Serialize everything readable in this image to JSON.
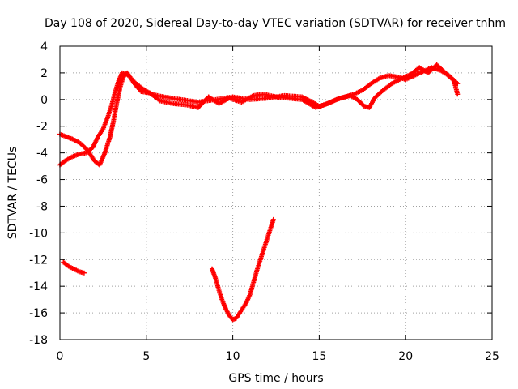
{
  "chart_data": {
    "type": "scatter",
    "title": "Day 108 of 2020, Sidereal Day-to-day VTEC variation (SDTVAR) for receiver tnhm",
    "xlabel": "GPS time / hours",
    "ylabel": "SDTVAR / TECUs",
    "xlim": [
      0,
      25
    ],
    "ylim": [
      -18,
      4
    ],
    "x_ticks": [
      0,
      5,
      10,
      15,
      20,
      25
    ],
    "y_ticks": [
      -18,
      -16,
      -14,
      -12,
      -10,
      -8,
      -6,
      -4,
      -2,
      0,
      2,
      4
    ],
    "grid": true,
    "marker": "plus",
    "series_color": "#ff0000",
    "series": [
      {
        "name": "upper-trace-a",
        "points": [
          [
            0,
            -2.6
          ],
          [
            0.4,
            -2.8
          ],
          [
            0.8,
            -3.0
          ],
          [
            1.2,
            -3.3
          ],
          [
            1.6,
            -3.8
          ],
          [
            2.0,
            -4.6
          ],
          [
            2.3,
            -4.9
          ],
          [
            2.6,
            -4.0
          ],
          [
            2.9,
            -2.8
          ],
          [
            3.1,
            -1.6
          ],
          [
            3.3,
            -0.2
          ],
          [
            3.5,
            1.0
          ],
          [
            3.7,
            1.8
          ],
          [
            3.9,
            2.0
          ],
          [
            4.1,
            1.6
          ],
          [
            4.4,
            1.2
          ],
          [
            4.8,
            0.8
          ],
          [
            5.3,
            0.4
          ],
          [
            6.0,
            0.2
          ],
          [
            7.0,
            0.0
          ],
          [
            8.0,
            -0.2
          ],
          [
            9.0,
            0.0
          ],
          [
            10.0,
            0.2
          ],
          [
            11.0,
            0.0
          ],
          [
            12.0,
            0.1
          ],
          [
            13.0,
            0.3
          ],
          [
            14.0,
            0.2
          ],
          [
            14.6,
            -0.2
          ],
          [
            15.0,
            -0.5
          ],
          [
            15.5,
            -0.3
          ],
          [
            16.0,
            0.0
          ],
          [
            16.5,
            0.2
          ],
          [
            17.0,
            0.4
          ],
          [
            17.5,
            0.7
          ],
          [
            18.0,
            1.2
          ],
          [
            18.5,
            1.6
          ],
          [
            19.0,
            1.8
          ],
          [
            19.5,
            1.7
          ],
          [
            20.0,
            1.5
          ],
          [
            20.5,
            1.8
          ],
          [
            21.0,
            2.1
          ],
          [
            21.5,
            2.4
          ],
          [
            22.0,
            2.2
          ],
          [
            22.5,
            1.8
          ],
          [
            23.0,
            1.2
          ]
        ]
      },
      {
        "name": "upper-trace-b",
        "points": [
          [
            0,
            -4.9
          ],
          [
            0.3,
            -4.6
          ],
          [
            0.7,
            -4.3
          ],
          [
            1.1,
            -4.1
          ],
          [
            1.5,
            -4.0
          ],
          [
            1.9,
            -3.6
          ],
          [
            2.2,
            -2.8
          ],
          [
            2.5,
            -2.2
          ],
          [
            2.8,
            -1.2
          ],
          [
            3.0,
            -0.4
          ],
          [
            3.2,
            0.6
          ],
          [
            3.4,
            1.4
          ],
          [
            3.6,
            2.0
          ],
          [
            4.0,
            1.8
          ],
          [
            4.3,
            1.2
          ],
          [
            4.7,
            0.6
          ],
          [
            5.2,
            0.5
          ],
          [
            5.8,
            -0.1
          ],
          [
            6.5,
            -0.3
          ],
          [
            7.3,
            -0.4
          ],
          [
            8.0,
            -0.6
          ],
          [
            8.6,
            0.2
          ],
          [
            9.2,
            -0.3
          ],
          [
            9.8,
            0.1
          ],
          [
            10.5,
            -0.2
          ],
          [
            11.2,
            0.3
          ],
          [
            11.8,
            0.4
          ],
          [
            12.5,
            0.2
          ],
          [
            13.2,
            0.1
          ],
          [
            14.0,
            0.0
          ],
          [
            14.8,
            -0.6
          ],
          [
            15.3,
            -0.4
          ],
          [
            16.2,
            0.1
          ],
          [
            16.8,
            0.3
          ],
          [
            17.2,
            0.0
          ],
          [
            17.6,
            -0.5
          ],
          [
            17.9,
            -0.6
          ],
          [
            18.2,
            0.1
          ],
          [
            18.6,
            0.6
          ],
          [
            19.2,
            1.2
          ],
          [
            19.8,
            1.6
          ],
          [
            20.3,
            1.9
          ],
          [
            20.8,
            2.4
          ],
          [
            21.3,
            2.0
          ],
          [
            21.8,
            2.6
          ],
          [
            22.3,
            2.0
          ],
          [
            22.8,
            1.4
          ],
          [
            23.0,
            0.4
          ]
        ]
      },
      {
        "name": "lower-left-segment",
        "points": [
          [
            0.2,
            -12.2
          ],
          [
            0.5,
            -12.5
          ],
          [
            0.8,
            -12.7
          ],
          [
            1.1,
            -12.9
          ],
          [
            1.4,
            -13.0
          ]
        ]
      },
      {
        "name": "lower-middle-dip",
        "points": [
          [
            8.8,
            -12.7
          ],
          [
            9.0,
            -13.4
          ],
          [
            9.2,
            -14.3
          ],
          [
            9.4,
            -15.1
          ],
          [
            9.6,
            -15.7
          ],
          [
            9.8,
            -16.2
          ],
          [
            10.0,
            -16.5
          ],
          [
            10.2,
            -16.4
          ],
          [
            10.4,
            -16.0
          ],
          [
            10.6,
            -15.6
          ],
          [
            10.8,
            -15.2
          ],
          [
            11.0,
            -14.6
          ],
          [
            11.2,
            -13.7
          ],
          [
            11.4,
            -12.8
          ],
          [
            11.6,
            -12.0
          ],
          [
            11.8,
            -11.2
          ],
          [
            12.0,
            -10.4
          ],
          [
            12.2,
            -9.6
          ],
          [
            12.35,
            -9.0
          ]
        ]
      }
    ]
  }
}
